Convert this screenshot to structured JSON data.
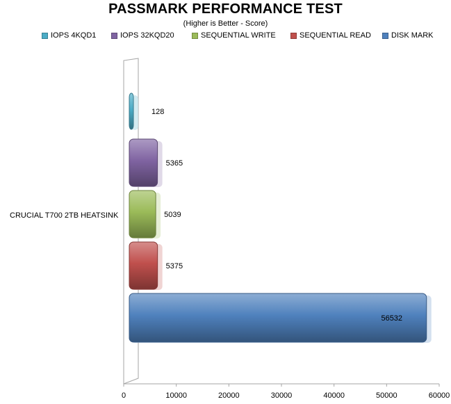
{
  "chart_data": {
    "type": "bar",
    "orientation": "horizontal",
    "title": "PASSMARK PERFORMANCE TEST",
    "subtitle": "(Higher is Better - Score)",
    "categories": [
      "CRUCIAL T700 2TB HEATSINK"
    ],
    "series": [
      {
        "name": "IOPS 4KQD1",
        "values": [
          128
        ],
        "color": "#4bacc6"
      },
      {
        "name": "IOPS 32KQD20",
        "values": [
          5365
        ],
        "color": "#8064a2"
      },
      {
        "name": "SEQUENTIAL WRITE",
        "values": [
          5039
        ],
        "color": "#9bbb59"
      },
      {
        "name": "SEQUENTIAL READ",
        "values": [
          5375
        ],
        "color": "#c0504d"
      },
      {
        "name": "DISK MARK",
        "values": [
          56532
        ],
        "color": "#4f81bd"
      }
    ],
    "xlim": [
      0,
      60000
    ],
    "xticks": [
      "0",
      "10000",
      "20000",
      "30000",
      "40000",
      "50000",
      "60000"
    ],
    "grid": false,
    "legend_position": "top"
  }
}
